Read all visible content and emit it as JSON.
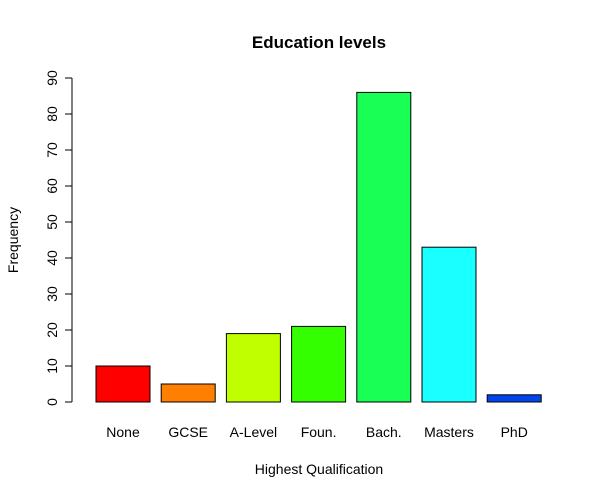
{
  "chart_data": {
    "type": "bar",
    "title": "Education levels",
    "xlabel": "Highest Qualification",
    "ylabel": "Frequency",
    "ylim": [
      0,
      90
    ],
    "yticks": [
      0,
      10,
      20,
      30,
      40,
      50,
      60,
      70,
      80,
      90
    ],
    "grid": false,
    "legend": "none",
    "categories": [
      "None",
      "GCSE",
      "A-Level",
      "Foun.",
      "Bach.",
      "Masters",
      "PhD"
    ],
    "values": [
      10,
      5,
      19,
      21,
      86,
      43,
      2
    ],
    "colors": [
      "#ff0000",
      "#ff8000",
      "#bfff00",
      "#33ff00",
      "#1aff55",
      "#1affff",
      "#0044ee"
    ]
  }
}
